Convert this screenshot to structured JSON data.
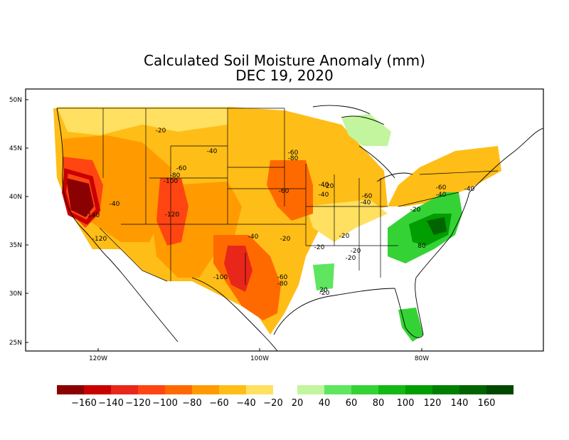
{
  "title": "Calculated Soil Moisture Anomaly (mm)",
  "date": "DEC 19, 2020",
  "axes": {
    "lat_labels": [
      "50N",
      "45N",
      "40N",
      "35N",
      "30N",
      "25N"
    ],
    "lon_labels": [
      "120W",
      "100W",
      "80W"
    ]
  },
  "contour_labels": [
    "-20",
    "-40",
    "-60",
    "-60",
    "-80",
    "-100",
    "-140",
    "-40",
    "-120",
    "-120",
    "-40",
    "-20",
    "-100",
    "-40",
    "-20",
    "-20",
    "-20",
    "-60",
    "-80",
    "-60",
    "-80",
    "-20",
    "-40",
    "-60",
    "-40",
    "-20",
    "-60",
    "-40",
    "-40",
    "-20",
    "80",
    "20",
    "-20"
  ],
  "colorbar": {
    "negative_colors": [
      "#8b0000",
      "#c80000",
      "#e8261a",
      "#ff4512",
      "#ff6a00",
      "#ff9b00",
      "#ffbd17",
      "#ffe060"
    ],
    "positive_colors": [
      "#c2f59d",
      "#5fe55f",
      "#35d235",
      "#14b814",
      "#009e00",
      "#007f00",
      "#006400",
      "#004800"
    ],
    "labels": [
      "−160",
      "−140",
      "−120",
      "−100",
      "−80",
      "−60",
      "−40",
      "−20",
      "20",
      "40",
      "60",
      "80",
      "100",
      "120",
      "140",
      "160"
    ]
  }
}
